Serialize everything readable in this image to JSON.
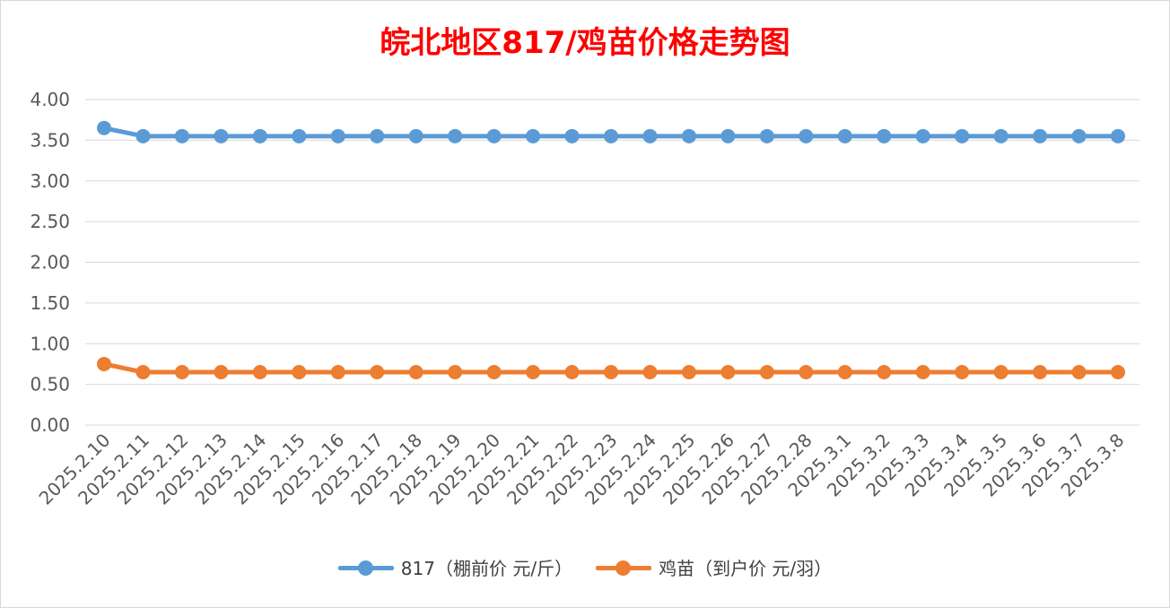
{
  "chart_data": {
    "type": "line",
    "title": "皖北地区817/鸡苗价格走势图",
    "xlabel": "",
    "ylabel": "",
    "ylim": [
      0,
      4
    ],
    "yticks": [
      "0.00",
      "0.50",
      "1.00",
      "1.50",
      "2.00",
      "2.50",
      "3.00",
      "3.50",
      "4.00"
    ],
    "grid": true,
    "legend_position": "bottom",
    "categories": [
      "2025.2.10",
      "2025.2.11",
      "2025.2.12",
      "2025.2.13",
      "2025.2.14",
      "2025.2.15",
      "2025.2.16",
      "2025.2.17",
      "2025.2.18",
      "2025.2.19",
      "2025.2.20",
      "2025.2.21",
      "2025.2.22",
      "2025.2.23",
      "2025.2.24",
      "2025.2.25",
      "2025.2.26",
      "2025.2.27",
      "2025.2.28",
      "2025.3.1",
      "2025.3.2",
      "2025.3.3",
      "2025.3.4",
      "2025.3.5",
      "2025.3.6",
      "2025.3.7",
      "2025.3.8"
    ],
    "series": [
      {
        "name": "817（棚前价 元/斤）",
        "color": "#5b9bd5",
        "values": [
          3.65,
          3.55,
          3.55,
          3.55,
          3.55,
          3.55,
          3.55,
          3.55,
          3.55,
          3.55,
          3.55,
          3.55,
          3.55,
          3.55,
          3.55,
          3.55,
          3.55,
          3.55,
          3.55,
          3.55,
          3.55,
          3.55,
          3.55,
          3.55,
          3.55,
          3.55,
          3.55
        ]
      },
      {
        "name": "鸡苗（到户价 元/羽）",
        "color": "#ed7d31",
        "values": [
          0.75,
          0.65,
          0.65,
          0.65,
          0.65,
          0.65,
          0.65,
          0.65,
          0.65,
          0.65,
          0.65,
          0.65,
          0.65,
          0.65,
          0.65,
          0.65,
          0.65,
          0.65,
          0.65,
          0.65,
          0.65,
          0.65,
          0.65,
          0.65,
          0.65,
          0.65,
          0.65
        ]
      }
    ]
  }
}
